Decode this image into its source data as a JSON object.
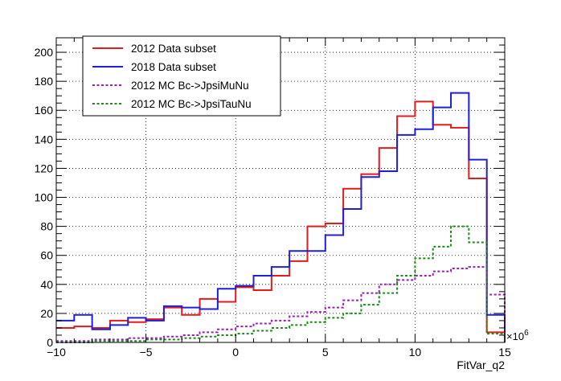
{
  "chart_data": {
    "type": "line",
    "step": true,
    "xlabel": "FitVar_q2",
    "ylabel": "",
    "x_multiplier_label": "×10",
    "x_multiplier_exp": "6",
    "xlim": [
      -10,
      15
    ],
    "ylim": [
      0,
      210
    ],
    "x_ticks": [
      -10,
      -5,
      0,
      5,
      10,
      15
    ],
    "y_ticks": [
      0,
      20,
      40,
      60,
      80,
      100,
      120,
      140,
      160,
      180,
      200
    ],
    "grid": true,
    "legend_position": "top-left",
    "bin_edges": [
      -10,
      -9,
      -8,
      -7,
      -6,
      -5,
      -4,
      -3,
      -2,
      -1,
      0,
      1,
      2,
      3,
      4,
      5,
      6,
      7,
      8,
      9,
      10,
      11,
      12,
      13,
      14,
      15
    ],
    "series": [
      {
        "name": "2012 Data subset",
        "color": "#e41a1c",
        "style": "solid",
        "values": [
          10,
          11,
          10,
          15,
          14,
          16,
          24,
          19,
          30,
          28,
          38,
          36,
          46,
          56,
          80,
          82,
          106,
          116,
          134,
          156,
          166,
          150,
          148,
          113,
          7,
          0
        ]
      },
      {
        "name": "2018 Data subset",
        "color": "#1f1fd6",
        "style": "solid",
        "values": [
          15,
          19,
          9,
          12,
          17,
          15,
          25,
          24,
          23,
          37,
          39,
          46,
          52,
          63,
          63,
          74,
          92,
          114,
          118,
          143,
          147,
          162,
          172,
          126,
          19,
          0
        ]
      },
      {
        "name": "2012 MC Bc->JpsiMuNu",
        "color": "#9a1fb5",
        "style": "dotted",
        "values": [
          1,
          1,
          2,
          2,
          3,
          3,
          4,
          5,
          7,
          9,
          11,
          13,
          15,
          18,
          21,
          24,
          29,
          34,
          40,
          43,
          46,
          49,
          51,
          52,
          33,
          0
        ]
      },
      {
        "name": "2012 MC Bc->JpsiTauNu",
        "color": "#1a8a1a",
        "style": "dotted",
        "values": [
          0,
          0,
          1,
          1,
          1,
          2,
          2,
          3,
          4,
          5,
          6,
          8,
          10,
          12,
          14,
          17,
          20,
          26,
          34,
          46,
          58,
          66,
          80,
          69,
          6,
          0
        ]
      }
    ]
  }
}
